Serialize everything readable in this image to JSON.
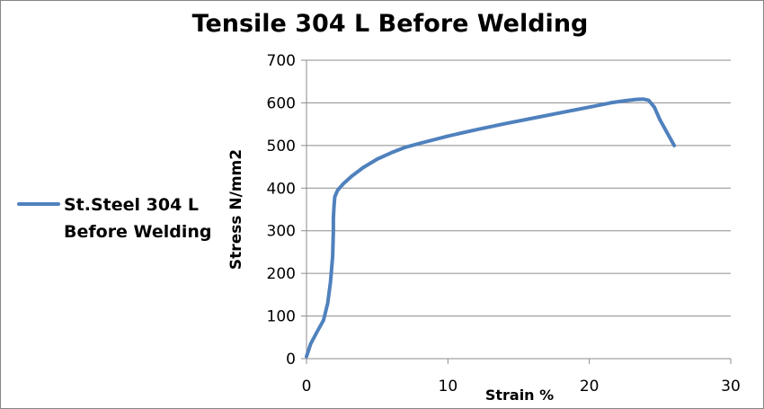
{
  "chart_data": {
    "type": "line",
    "title": "Tensile 304 L Before Welding",
    "xlabel": "Strain %",
    "ylabel": "Stress   N/mm2",
    "xlim": [
      0,
      30
    ],
    "ylim": [
      0,
      700
    ],
    "x_ticks": [
      0,
      10,
      20,
      30
    ],
    "y_ticks": [
      0,
      100,
      200,
      300,
      400,
      500,
      600,
      700
    ],
    "grid": "horizontal",
    "legend_position": "left",
    "series": [
      {
        "name": "St.Steel 304 L Before Welding",
        "color": "#4f81bd",
        "x": [
          0,
          0.3,
          0.7,
          1.2,
          1.5,
          1.7,
          1.85,
          1.9,
          1.9,
          1.95,
          2.0,
          2.2,
          2.6,
          3.2,
          4.0,
          5.0,
          6.0,
          7.0,
          8.0,
          10.0,
          12.0,
          14.0,
          16.0,
          18.0,
          20.0,
          21.5,
          22.5,
          23.3,
          23.8,
          24.2,
          24.6,
          25.0,
          25.5,
          26.0
        ],
        "y": [
          5,
          35,
          60,
          90,
          130,
          180,
          240,
          300,
          330,
          360,
          380,
          395,
          410,
          428,
          448,
          468,
          483,
          496,
          505,
          522,
          537,
          551,
          564,
          577,
          590,
          600,
          605,
          608,
          609,
          606,
          590,
          560,
          530,
          500
        ]
      }
    ]
  }
}
